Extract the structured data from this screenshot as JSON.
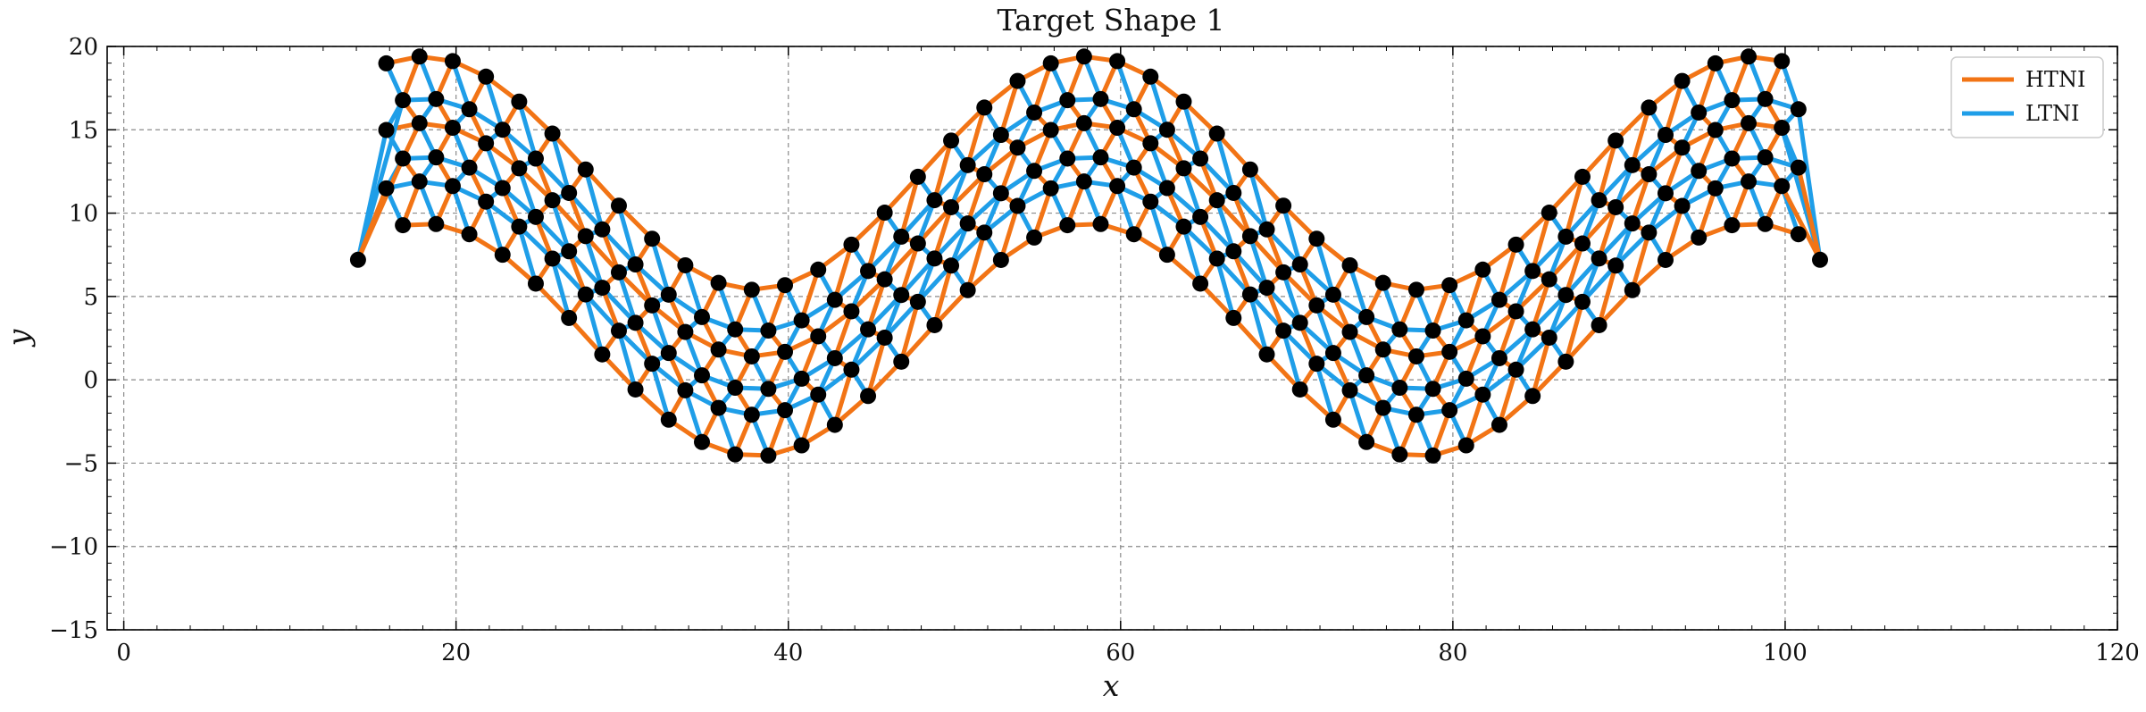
{
  "chart_data": {
    "type": "network",
    "title": "Target Shape 1",
    "xlabel": "x",
    "ylabel": "y",
    "xlim": [
      -1,
      120
    ],
    "ylim": [
      -15,
      20
    ],
    "xticks": [
      0,
      20,
      40,
      60,
      80,
      100,
      120
    ],
    "xtick_labels": [
      "0",
      "20",
      "40",
      "60",
      "80",
      "100",
      "120"
    ],
    "yticks": [
      -15,
      -10,
      -5,
      0,
      5,
      10,
      15,
      20
    ],
    "ytick_labels": [
      "−15",
      "−10",
      "−5",
      "0",
      "5",
      "10",
      "15",
      "20"
    ],
    "grid": true,
    "legend": {
      "position": "top-right",
      "entries": [
        {
          "label": "HTNI",
          "color": "#f27415"
        },
        {
          "label": "LTNI",
          "color": "#1f9ee8"
        }
      ]
    },
    "lattice": {
      "description": "Triangular lattice band of nodes deformed along a sine wave; edges colored by type",
      "rows": 6,
      "columns": 44,
      "x_start": 14.1,
      "x_step": 2.0,
      "band_offsets": [
        5.0,
        2.5,
        1.0,
        -1.0,
        -2.5,
        -5.0
      ],
      "wave_amplitude": 7.0,
      "wave_period": 40,
      "wave_phase_x": 18,
      "wave_center": 7.2,
      "node_color": "#000000",
      "edge_colors": {
        "HTNI": "#f27415",
        "LTNI": "#1f9ee8"
      }
    }
  }
}
